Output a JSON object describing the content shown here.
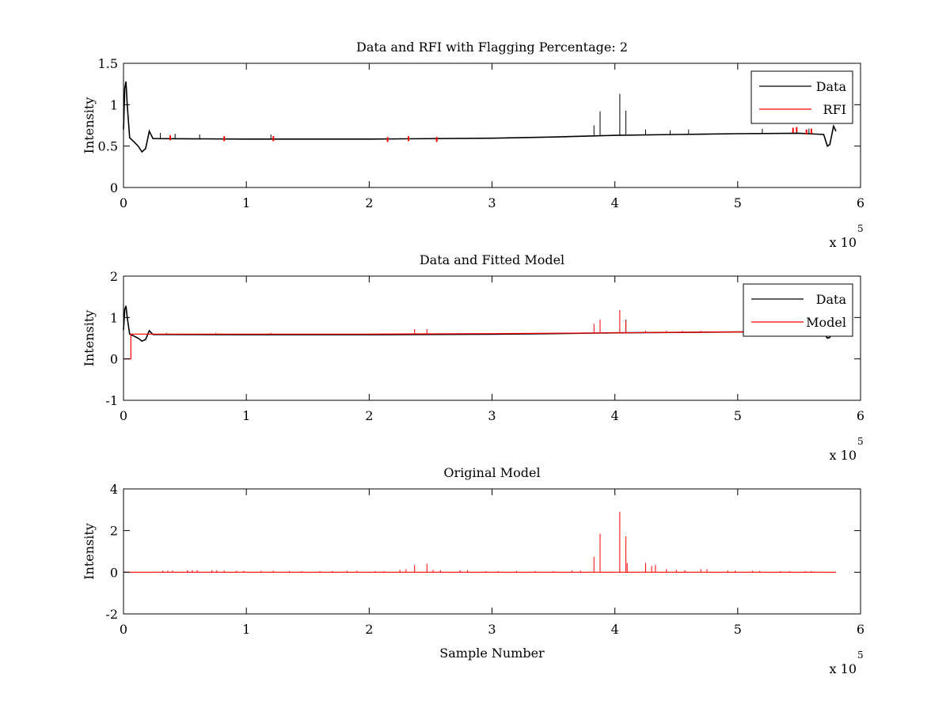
{
  "colors": {
    "data": "#000000",
    "rfi": "#ff0000",
    "model": "#ff0000",
    "axes": "#000000",
    "background": "#ffffff"
  },
  "chart_data": [
    {
      "type": "line",
      "title": "Data and RFI with Flagging Percentage: 2",
      "xlabel": "",
      "ylabel": "Intensity",
      "xlim": [
        0,
        6
      ],
      "ylim": [
        0,
        1.5
      ],
      "x_exponent_label": "x 10",
      "x_exponent_power": "5",
      "xticks": [
        "0",
        "1",
        "2",
        "3",
        "4",
        "5",
        "6"
      ],
      "yticks": [
        "0",
        "0.5",
        "1",
        "1.5"
      ],
      "grid": false,
      "legend_position": "top-right",
      "legend": [
        "Data",
        "RFI"
      ],
      "series": [
        {
          "name": "Data",
          "color": "#000000",
          "baseline": [
            [
              0,
              0.7
            ],
            [
              0.01,
              1.2
            ],
            [
              0.02,
              1.28
            ],
            [
              0.03,
              1.0
            ],
            [
              0.05,
              0.6
            ],
            [
              0.08,
              0.56
            ],
            [
              0.12,
              0.5
            ],
            [
              0.15,
              0.43
            ],
            [
              0.18,
              0.47
            ],
            [
              0.21,
              0.68
            ],
            [
              0.24,
              0.59
            ],
            [
              1.0,
              0.585
            ],
            [
              2.0,
              0.585
            ],
            [
              3.0,
              0.595
            ],
            [
              3.5,
              0.61
            ],
            [
              4.0,
              0.63
            ],
            [
              4.5,
              0.64
            ],
            [
              5.0,
              0.65
            ],
            [
              5.5,
              0.655
            ],
            [
              5.7,
              0.64
            ],
            [
              5.73,
              0.5
            ],
            [
              5.75,
              0.52
            ],
            [
              5.78,
              0.74
            ],
            [
              5.8,
              0.68
            ]
          ],
          "spikes": [
            [
              0.3,
              0.66
            ],
            [
              0.42,
              0.65
            ],
            [
              0.62,
              0.64
            ],
            [
              1.2,
              0.64
            ],
            [
              3.83,
              0.75
            ],
            [
              3.88,
              0.92
            ],
            [
              4.04,
              1.13
            ],
            [
              4.09,
              0.93
            ],
            [
              4.25,
              0.7
            ],
            [
              4.45,
              0.69
            ],
            [
              4.6,
              0.7
            ],
            [
              5.2,
              0.71
            ],
            [
              5.48,
              0.72
            ],
            [
              5.58,
              0.71
            ]
          ]
        },
        {
          "name": "RFI",
          "color": "#ff0000",
          "spikes": [
            [
              0.38,
              0.63
            ],
            [
              0.82,
              0.62
            ],
            [
              1.22,
              0.62
            ],
            [
              2.15,
              0.61
            ],
            [
              2.32,
              0.62
            ],
            [
              2.55,
              0.61
            ],
            [
              5.45,
              0.72
            ],
            [
              5.48,
              0.73
            ],
            [
              5.56,
              0.7
            ],
            [
              5.6,
              0.71
            ]
          ]
        }
      ]
    },
    {
      "type": "line",
      "title": "Data and Fitted Model",
      "xlabel": "",
      "ylabel": "Intensity",
      "xlim": [
        0,
        6
      ],
      "ylim": [
        -1,
        2
      ],
      "x_exponent_label": "x 10",
      "x_exponent_power": "5",
      "xticks": [
        "0",
        "1",
        "2",
        "3",
        "4",
        "5",
        "6"
      ],
      "yticks": [
        "-1",
        "0",
        "1",
        "2"
      ],
      "grid": false,
      "legend_position": "top-right",
      "legend": [
        "Data",
        "Model"
      ],
      "series": [
        {
          "name": "Data",
          "color": "#000000",
          "baseline": [
            [
              0,
              0.7
            ],
            [
              0.01,
              1.2
            ],
            [
              0.02,
              1.28
            ],
            [
              0.03,
              1.0
            ],
            [
              0.05,
              0.6
            ],
            [
              0.08,
              0.56
            ],
            [
              0.12,
              0.5
            ],
            [
              0.15,
              0.43
            ],
            [
              0.18,
              0.47
            ],
            [
              0.21,
              0.68
            ],
            [
              0.24,
              0.59
            ],
            [
              1.0,
              0.585
            ],
            [
              2.0,
              0.585
            ],
            [
              3.0,
              0.595
            ],
            [
              3.5,
              0.61
            ],
            [
              4.0,
              0.63
            ],
            [
              4.5,
              0.64
            ],
            [
              5.0,
              0.65
            ],
            [
              5.5,
              0.655
            ],
            [
              5.7,
              0.64
            ],
            [
              5.73,
              0.5
            ],
            [
              5.75,
              0.52
            ],
            [
              5.78,
              0.74
            ],
            [
              5.8,
              0.68
            ]
          ],
          "spikes": [
            [
              3.88,
              0.95
            ],
            [
              4.09,
              0.95
            ]
          ]
        },
        {
          "name": "Model",
          "color": "#ff0000",
          "baseline": [
            [
              0.0,
              0.0
            ],
            [
              0.06,
              0.0
            ],
            [
              0.06,
              0.6
            ],
            [
              1.0,
              0.6
            ],
            [
              2.0,
              0.6
            ],
            [
              3.0,
              0.61
            ],
            [
              4.0,
              0.63
            ],
            [
              5.0,
              0.65
            ],
            [
              5.55,
              0.66
            ]
          ],
          "spikes": [
            [
              0.35,
              0.63
            ],
            [
              0.75,
              0.63
            ],
            [
              1.2,
              0.63
            ],
            [
              2.37,
              0.72
            ],
            [
              2.47,
              0.72
            ],
            [
              3.83,
              0.85
            ],
            [
              3.88,
              0.95
            ],
            [
              4.04,
              1.18
            ],
            [
              4.09,
              0.92
            ],
            [
              4.25,
              0.68
            ],
            [
              4.42,
              0.68
            ],
            [
              4.55,
              0.68
            ],
            [
              4.7,
              0.68
            ]
          ]
        }
      ]
    },
    {
      "type": "line",
      "title": "Original Model",
      "xlabel": "Sample Number",
      "ylabel": "Intensity",
      "xlim": [
        0,
        6
      ],
      "ylim": [
        -2,
        4
      ],
      "x_exponent_label": "x 10",
      "x_exponent_power": "5",
      "xticks": [
        "0",
        "1",
        "2",
        "3",
        "4",
        "5",
        "6"
      ],
      "yticks": [
        "-2",
        "0",
        "2",
        "4"
      ],
      "grid": false,
      "legend_position": "none",
      "legend": [],
      "series": [
        {
          "name": "",
          "color": "#ff0000",
          "baseline": [
            [
              0.0,
              0.0
            ],
            [
              5.8,
              0.0
            ]
          ],
          "spikes": [
            [
              0.32,
              0.08
            ],
            [
              0.36,
              0.08
            ],
            [
              0.4,
              0.08
            ],
            [
              0.52,
              0.1
            ],
            [
              0.56,
              0.1
            ],
            [
              0.6,
              0.1
            ],
            [
              0.72,
              0.1
            ],
            [
              0.76,
              0.1
            ],
            [
              0.82,
              0.08
            ],
            [
              0.92,
              0.07
            ],
            [
              0.98,
              0.07
            ],
            [
              1.12,
              0.07
            ],
            [
              1.22,
              0.07
            ],
            [
              1.35,
              0.06
            ],
            [
              1.45,
              0.06
            ],
            [
              1.6,
              0.06
            ],
            [
              1.7,
              0.06
            ],
            [
              1.82,
              0.07
            ],
            [
              1.9,
              0.07
            ],
            [
              2.05,
              0.06
            ],
            [
              2.12,
              0.06
            ],
            [
              2.25,
              0.12
            ],
            [
              2.3,
              0.15
            ],
            [
              2.37,
              0.35
            ],
            [
              2.47,
              0.4
            ],
            [
              2.52,
              0.12
            ],
            [
              2.58,
              0.1
            ],
            [
              2.74,
              0.1
            ],
            [
              2.8,
              0.1
            ],
            [
              2.95,
              0.06
            ],
            [
              3.05,
              0.06
            ],
            [
              3.2,
              0.06
            ],
            [
              3.35,
              0.06
            ],
            [
              3.5,
              0.06
            ],
            [
              3.65,
              0.08
            ],
            [
              3.72,
              0.08
            ],
            [
              3.83,
              0.75
            ],
            [
              3.88,
              1.85
            ],
            [
              4.04,
              2.9
            ],
            [
              4.09,
              1.72
            ],
            [
              4.1,
              0.45
            ],
            [
              4.25,
              0.45
            ],
            [
              4.3,
              0.3
            ],
            [
              4.33,
              0.35
            ],
            [
              4.42,
              0.15
            ],
            [
              4.5,
              0.12
            ],
            [
              4.57,
              0.1
            ],
            [
              4.7,
              0.15
            ],
            [
              4.75,
              0.15
            ],
            [
              4.92,
              0.08
            ],
            [
              4.98,
              0.08
            ],
            [
              5.12,
              0.07
            ],
            [
              5.18,
              0.07
            ],
            [
              5.35,
              0.06
            ],
            [
              5.42,
              0.06
            ],
            [
              5.55,
              0.06
            ],
            [
              5.6,
              0.06
            ]
          ]
        }
      ]
    }
  ]
}
